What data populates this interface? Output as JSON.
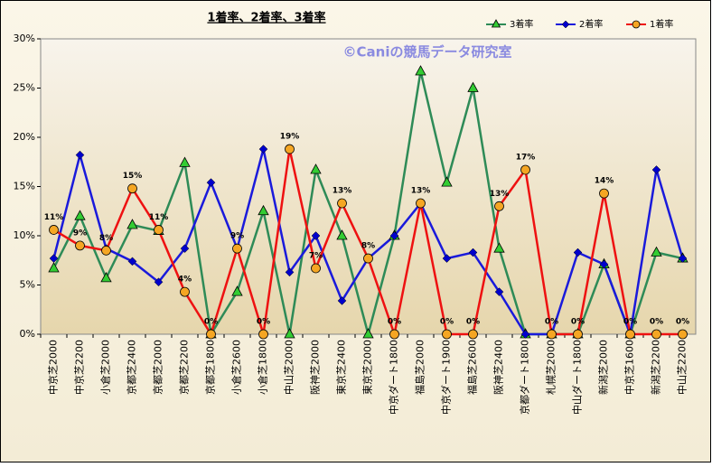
{
  "chart_data": {
    "type": "line",
    "title": "1着率、2着率、3着率",
    "watermark": "©Caniの競馬データ研究室",
    "categories": [
      "中京芝2000",
      "中京芝2200",
      "小倉芝2000",
      "京都芝2400",
      "京都芝2000",
      "京都芝2200",
      "京都芝1800",
      "小倉芝2600",
      "小倉芝1800",
      "中山芝2000",
      "阪神芝2000",
      "東京芝2400",
      "東京芝2000",
      "中京ダート1800",
      "福島芝2000",
      "中京ダート1900",
      "福島芝2600",
      "阪神芝2400",
      "京都ダート1800",
      "札幌芝2000",
      "中山ダート1800",
      "新潟芝2000",
      "中京芝1600",
      "新潟芝2200",
      "中山芝2200"
    ],
    "series": [
      {
        "name": "3着率",
        "color": "#2e8b57",
        "marker": "triangle",
        "marker_color": "#33cc33",
        "values": [
          6.7,
          12.0,
          5.7,
          11.1,
          10.5,
          17.4,
          0,
          4.3,
          12.5,
          0,
          16.7,
          10.0,
          0,
          10.0,
          26.7,
          15.4,
          25.0,
          8.7,
          0,
          0,
          0,
          7.1,
          0,
          8.3,
          7.7
        ]
      },
      {
        "name": "2着率",
        "color": "#1a1adb",
        "marker": "diamond",
        "marker_color": "#0000cc",
        "values": [
          7.7,
          18.2,
          8.7,
          7.4,
          5.3,
          8.7,
          15.4,
          8.7,
          18.8,
          6.3,
          10.0,
          3.4,
          7.7,
          10.0,
          13.3,
          7.7,
          8.3,
          4.3,
          0,
          0,
          8.3,
          7.1,
          0,
          16.7,
          7.7
        ]
      },
      {
        "name": "1着率",
        "color": "#ee1111",
        "marker": "circle",
        "marker_color": "#f5a623",
        "values": [
          10.6,
          9.0,
          8.5,
          14.8,
          10.6,
          4.3,
          0,
          8.7,
          0,
          18.8,
          6.7,
          13.3,
          7.7,
          0,
          13.3,
          0,
          0,
          13.0,
          16.7,
          0,
          0,
          14.3,
          0,
          0,
          0
        ],
        "value_labels": [
          "11%",
          "9%",
          "8%",
          "15%",
          "11%",
          "4%",
          "0%",
          "9%",
          "0%",
          "19%",
          "7%",
          "13%",
          "8%",
          "0%",
          "13%",
          "0%",
          "0%",
          "13%",
          "17%",
          "0%",
          "0%",
          "14%",
          "0%",
          "0%",
          "0%"
        ]
      }
    ],
    "ylim": [
      0,
      30
    ],
    "yticks": [
      {
        "value": 0,
        "label": "0%"
      },
      {
        "value": 5,
        "label": "5%"
      },
      {
        "value": 10,
        "label": "10%"
      },
      {
        "value": 15,
        "label": "15%"
      },
      {
        "value": 20,
        "label": "20%"
      },
      {
        "value": 25,
        "label": "25%"
      },
      {
        "value": 30,
        "label": "30%"
      }
    ],
    "grid": false
  }
}
